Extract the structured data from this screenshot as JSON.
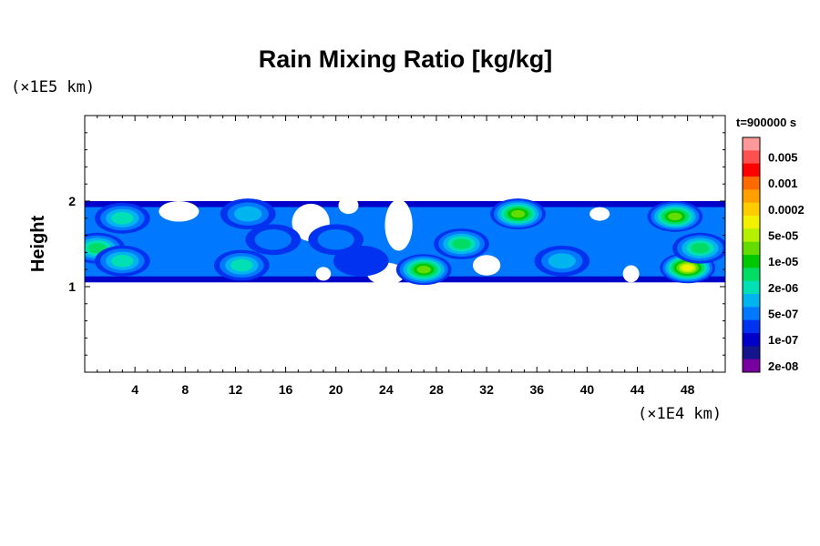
{
  "chart_data": {
    "type": "heatmap",
    "title": "Rain Mixing Ratio [kg/kg]",
    "ylabel": "Height",
    "xlabel": "",
    "x_unit": "(×1E4 km)",
    "y_unit": "(×1E5 km)",
    "time_label": "t=900000 s",
    "xlim": [
      0,
      51
    ],
    "ylim": [
      0,
      3
    ],
    "x_ticks": [
      4,
      8,
      12,
      16,
      20,
      24,
      28,
      32,
      36,
      40,
      44,
      48
    ],
    "y_ticks": [
      1,
      2
    ],
    "colorbar": {
      "levels": [
        "0.005",
        "0.001",
        "0.0002",
        "5e-05",
        "1e-05",
        "2e-06",
        "5e-07",
        "1e-07",
        "2e-08"
      ],
      "colors": [
        "#ff9999",
        "#ff5050",
        "#ff0000",
        "#ff6a00",
        "#ff9f00",
        "#ffcc00",
        "#f2f200",
        "#b4f000",
        "#64dc00",
        "#00c800",
        "#00dc64",
        "#00e0b4",
        "#00b4f0",
        "#0078ff",
        "#0032f0",
        "#0000c8",
        "#14148c",
        "#7800a0"
      ]
    },
    "field_bands": [
      {
        "level": 0,
        "x_range": [
          0,
          51
        ],
        "y_range": [
          1.05,
          2.0
        ],
        "description": "outer rain envelope"
      }
    ],
    "cores": [
      {
        "x": 3,
        "y": 1.8,
        "level": 6
      },
      {
        "x": 1,
        "y": 1.45,
        "level": 7
      },
      {
        "x": 3,
        "y": 1.3,
        "level": 6
      },
      {
        "x": 13,
        "y": 1.85,
        "level": 5
      },
      {
        "x": 12.5,
        "y": 1.25,
        "level": 6
      },
      {
        "x": 15,
        "y": 1.55,
        "level": 4
      },
      {
        "x": 20,
        "y": 1.55,
        "level": 4
      },
      {
        "x": 22,
        "y": 1.3,
        "level": 3
      },
      {
        "x": 27,
        "y": 1.2,
        "level": 9
      },
      {
        "x": 30,
        "y": 1.5,
        "level": 7
      },
      {
        "x": 34.5,
        "y": 1.85,
        "level": 9
      },
      {
        "x": 38,
        "y": 1.3,
        "level": 5
      },
      {
        "x": 47,
        "y": 1.82,
        "level": 9
      },
      {
        "x": 48,
        "y": 1.22,
        "level": 11
      },
      {
        "x": 49,
        "y": 1.45,
        "level": 7
      }
    ]
  }
}
